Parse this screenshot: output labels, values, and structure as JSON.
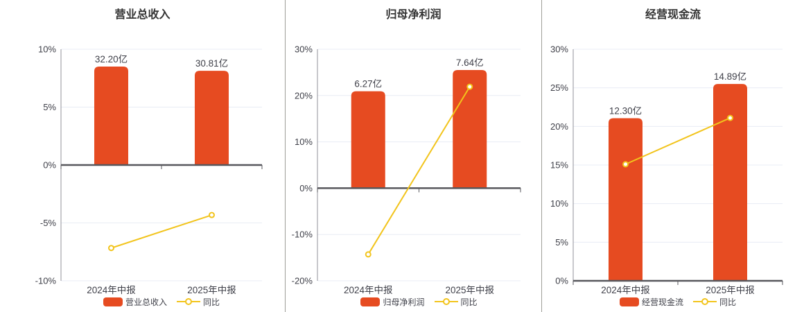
{
  "colors": {
    "bar": "#e64b21",
    "line": "#f2c41c",
    "grid": "#e8ecf4",
    "zero_axis": "#57575c",
    "axis": "#90909a",
    "text": "#3f4049",
    "title": "#333333",
    "divider": "#9e9e98",
    "marker_fill": "#ffffff"
  },
  "chart_data": [
    {
      "type": "combo",
      "title": "营业总收入",
      "categories": [
        "2024年中报",
        "2025年中报"
      ],
      "series": [
        {
          "name": "营业总收入",
          "type": "bar",
          "unit": "亿",
          "values": [
            32.2,
            30.81
          ],
          "labels": [
            "32.20亿",
            "30.81亿"
          ]
        },
        {
          "name": "同比",
          "type": "line",
          "unit": "%",
          "values": [
            -7.17,
            -4.32
          ]
        }
      ],
      "y_axis": {
        "min": -10,
        "max": 10,
        "step": 5,
        "tick_labels": [
          "10%",
          "5%",
          "0%",
          "-5%",
          "-10%"
        ],
        "format": "percent"
      },
      "grid": true,
      "legend_position": "bottom"
    },
    {
      "type": "combo",
      "title": "归母净利润",
      "categories": [
        "2024年中报",
        "2025年中报"
      ],
      "series": [
        {
          "name": "归母净利润",
          "type": "bar",
          "unit": "亿",
          "values": [
            6.27,
            7.64
          ],
          "labels": [
            "6.27亿",
            "7.64亿"
          ]
        },
        {
          "name": "同比",
          "type": "line",
          "unit": "%",
          "values": [
            -14.3,
            21.9
          ]
        }
      ],
      "y_axis": {
        "min": -20,
        "max": 30,
        "step": 10,
        "tick_labels": [
          "30%",
          "20%",
          "10%",
          "0%",
          "-10%",
          "-20%"
        ],
        "format": "percent"
      },
      "grid": true,
      "legend_position": "bottom"
    },
    {
      "type": "combo",
      "title": "经营现金流",
      "categories": [
        "2024年中报",
        "2025年中报"
      ],
      "series": [
        {
          "name": "经营现金流",
          "type": "bar",
          "unit": "亿",
          "values": [
            12.3,
            14.89
          ],
          "labels": [
            "12.30亿",
            "14.89亿"
          ]
        },
        {
          "name": "同比",
          "type": "line",
          "unit": "%",
          "values": [
            15.1,
            21.1
          ]
        }
      ],
      "y_axis": {
        "min": 0,
        "max": 30,
        "step": 5,
        "tick_labels": [
          "30%",
          "25%",
          "20%",
          "15%",
          "10%",
          "5%",
          "0%"
        ],
        "format": "percent"
      },
      "grid": true,
      "legend_position": "bottom"
    }
  ]
}
